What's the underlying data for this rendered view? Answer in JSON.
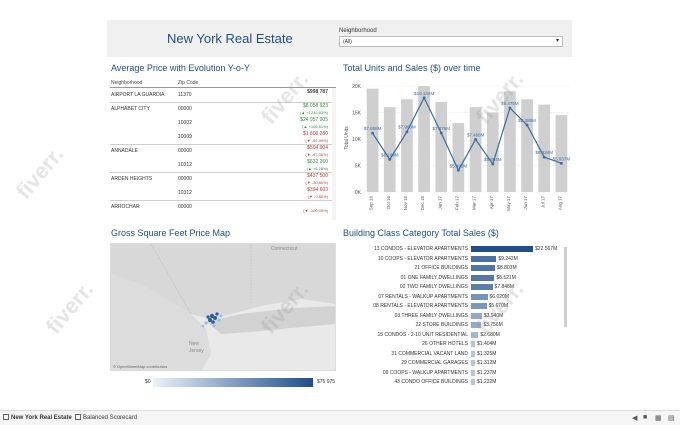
{
  "header": {
    "title": "New York Real Estate",
    "filter_label": "Neighborhood",
    "filter_value": "(All)"
  },
  "avg_price": {
    "title": "Average Price with Evolution Y-o-Y",
    "col_neighborhood": "Neighborhood",
    "col_zip": "Zip Code",
    "rows": [
      {
        "hood": "AIRPORT LA GUARDIA",
        "zip": "11370",
        "value": "$998 787",
        "change": "",
        "kind": "neu"
      },
      {
        "hood": "ALPHABET CITY",
        "zip": "00000",
        "value": "$8 058 923",
        "change": "(▲ +1245,83%)",
        "kind": "pos"
      },
      {
        "hood": "",
        "zip": "10002",
        "value": "$24 057 005",
        "change": "(▲ +106,51%)",
        "kind": "pos"
      },
      {
        "hood": "",
        "zip": "10009",
        "value": "$1 806 280",
        "change": "(▼ -92,49%)",
        "kind": "neg"
      },
      {
        "hood": "ANNADALE",
        "zip": "00000",
        "value": "$594 904",
        "change": "(▼ -67,06%)",
        "kind": "neg"
      },
      {
        "hood": "",
        "zip": "10312",
        "value": "$632 260",
        "change": "(▲ +6,28%)",
        "kind": "pos"
      },
      {
        "hood": "ARDEN HEIGHTS",
        "zip": "00000",
        "value": "$437 500",
        "change": "(▼ -30,80%)",
        "kind": "neg"
      },
      {
        "hood": "",
        "zip": "10312",
        "value": "$394 603",
        "change": "(▼ -9,80%)",
        "kind": "neg"
      },
      {
        "hood": "ARROCHAR",
        "zip": "00000",
        "value": "",
        "change": "(▼ -100,00%)",
        "kind": "neg"
      }
    ]
  },
  "units_sales": {
    "title": "Total Units and Sales ($) over time",
    "y_ticks": [
      "0K",
      "5K",
      "10K",
      "15K",
      "20K"
    ],
    "y_axis_label": "Total Units"
  },
  "chart_data": [
    {
      "type": "bar",
      "title": "Total Units and Sales ($) over time",
      "categories": [
        "Sep 16",
        "Oct 16",
        "Nov 16",
        "Dec 16",
        "Jan 17",
        "Feb 17",
        "Mar 17",
        "Apr 17",
        "May 17",
        "Jun 17",
        "Jul 17",
        "Aug 17"
      ],
      "series": [
        {
          "values": [
            19500,
            16000,
            17500,
            20000,
            17000,
            13000,
            16000,
            15000,
            19000,
            17500,
            16500,
            14500
          ]
        },
        {
          "labels": [
            "$7.868M",
            "$6.184M",
            "$7.960M",
            "$10.132M",
            "$7.876M",
            "$5.493M",
            "$7.468M",
            "$5.894M",
            "$9.475M",
            "$8.385M",
            "$6.334M",
            "$5.937M"
          ],
          "values": [
            7.868,
            6.184,
            7.96,
            10.132,
            7.876,
            5.493,
            7.468,
            5.894,
            9.475,
            8.385,
            6.334,
            5.937
          ]
        }
      ],
      "ylim": [
        0,
        20000
      ],
      "ylabel": "Total Units"
    },
    {
      "type": "bar",
      "title": "Building Class Category Total Sales ($)",
      "categories": [
        "13 CONDOS - ELEVATOR APARTMENTS",
        "10 COOPS - ELEVATOR APARTMENTS",
        "21 OFFICE BUILDINGS",
        "01 ONE FAMILY DWELLINGS",
        "02 TWO FAMILY DWELLINGS",
        "07 RENTALS - WALKUP APARTMENTS",
        "08 RENTALS - ELEVATOR APARTMENTS",
        "03 THREE FAMILY DWELLINGS",
        "22 STORE BUILDINGS",
        "15 CONDOS - 2-10 UNIT RESIDENTIAL",
        "26 OTHER HOTELS",
        "31 COMMERCIAL VACANT LAND",
        "29 COMMERCIAL GARAGES",
        "09 COOPS - WALKUP APARTMENTS",
        "43 CONDO OFFICE BUILDINGS"
      ],
      "labels": [
        "$22.567M",
        "$9.242M",
        "$8.803M",
        "$8.521M",
        "$7.848M",
        "$6.020M",
        "$5.670M",
        "$3.940M",
        "$3.756M",
        "$2.680M",
        "$1.404M",
        "$1.325M",
        "$1.312M",
        "$1.237M",
        "$1.232M"
      ],
      "values": [
        22.567,
        9.242,
        8.803,
        8.521,
        7.848,
        6.02,
        5.67,
        3.94,
        3.756,
        2.68,
        1.404,
        1.325,
        1.312,
        1.237,
        1.232
      ]
    }
  ],
  "map": {
    "title": "Gross Square Feet Price Map",
    "label_connecticut": "Connecticut",
    "label_new": "New",
    "label_jersey": "Jersey",
    "attribution": "© OpenStreetMap contributors",
    "legend_min": "$0",
    "legend_max": "$75 975"
  },
  "building_class": {
    "title": "Building Class Category Total Sales ($)"
  },
  "colors": {
    "accent": "#1f4e8c",
    "bar_gray": "#cfcfcf",
    "line": "#3a6ea5"
  },
  "tabs": [
    "New York Real Estate",
    "Balanced Scorecard"
  ],
  "watermark": "fiverr."
}
